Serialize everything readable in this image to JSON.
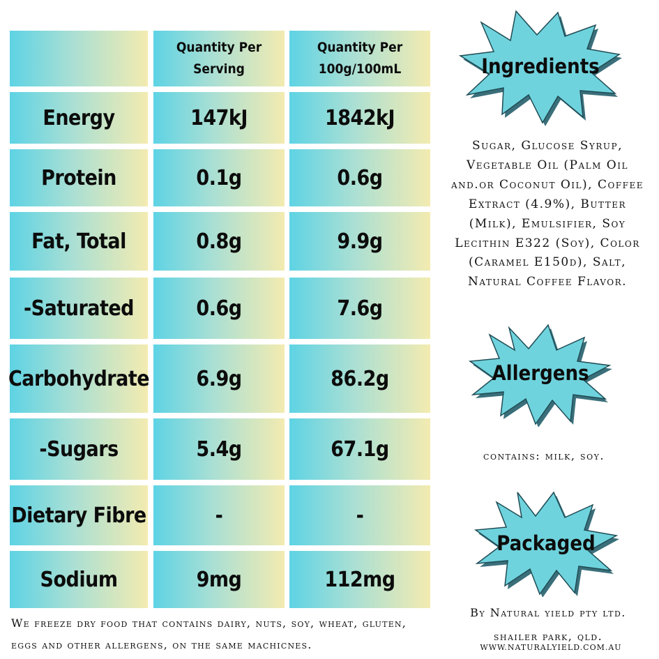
{
  "table": {
    "headers": [
      "",
      "Quantity Per Serving",
      "Quantity Per 100g/100mL"
    ],
    "rows": [
      {
        "label": "Energy",
        "per_serving": "147kJ",
        "per_100": "1842kJ"
      },
      {
        "label": "Protein",
        "per_serving": "0.1g",
        "per_100": "0.6g"
      },
      {
        "label": "Fat, Total",
        "per_serving": "0.8g",
        "per_100": "9.9g"
      },
      {
        "label": "-Saturated",
        "per_serving": "0.6g",
        "per_100": "7.6g"
      },
      {
        "label": "Carbohydrate",
        "per_serving": "6.9g",
        "per_100": "86.2g"
      },
      {
        "label": "-Sugars",
        "per_serving": "5.4g",
        "per_100": "67.1g"
      },
      {
        "label": "Dietary Fibre",
        "per_serving": "-",
        "per_100": "-"
      },
      {
        "label": "Sodium",
        "per_serving": "9mg",
        "per_100": "112mg"
      }
    ]
  },
  "ingredients": {
    "title": "Ingredients",
    "text": "Sugar, Glucose Syrup, Vegetable Oil (Palm Oil and.or Coconut Oil), Coffee Extract (4.9%), Butter (Milk), Emulsifier, Soy Lecithin E322 (Soy), Color (Caramel E150d), Salt, Natural Coffee Flavor."
  },
  "allergens": {
    "title": "Allergens",
    "text": "contains: milk, soy."
  },
  "packaged": {
    "title": "Packaged",
    "text": "By Natural yield pty ltd.  shailer park, qld.",
    "website": "www.naturalyield.com.au"
  },
  "footer_note": "We freeze dry food that contains dairy, nuts, soy, wheat, gluten, eggs and other allergens, on the same machicnes.",
  "colors": {
    "cell_left": "#5ed3e4",
    "cell_right": "#f3ebb0",
    "burst_fill": "#6fd3dd",
    "burst_shadow": "#3a6f7a",
    "text": "#0c0c0c"
  }
}
